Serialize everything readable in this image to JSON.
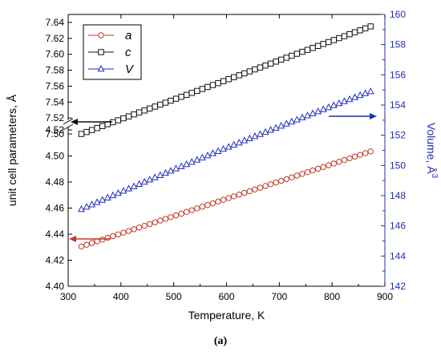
{
  "chart_data": {
    "type": "scatter",
    "caption": "(a)",
    "xlabel": "Temperature, K",
    "ylabel_left": "unit cell parameters, Å",
    "ylabel_right": "Volume, Å3",
    "xlim": [
      300,
      900
    ],
    "x_ticks": [
      "300",
      "400",
      "500",
      "600",
      "700",
      "800",
      "900"
    ],
    "left_axis_lower": {
      "range": [
        4.4,
        4.52
      ],
      "ticks": [
        "4.40",
        "4.42",
        "4.44",
        "4.46",
        "4.48",
        "4.50",
        "4.52"
      ]
    },
    "left_axis_upper": {
      "range": [
        7.49,
        7.65
      ],
      "ticks": [
        "7.50",
        "7.52",
        "7.54",
        "7.56",
        "7.58",
        "7.60",
        "7.62",
        "7.64"
      ]
    },
    "right_axis": {
      "range": [
        142,
        160
      ],
      "ticks": [
        "142",
        "144",
        "146",
        "148",
        "150",
        "152",
        "154",
        "156",
        "158",
        "160"
      ]
    },
    "legend": {
      "position": "top-left",
      "entries": [
        "a",
        "c",
        "V"
      ]
    },
    "series": [
      {
        "name": "a",
        "axis": "left-lower",
        "marker": "circle",
        "color": "#c0392b",
        "x_start": 325,
        "x_end": 873,
        "count": 56,
        "y_start": 4.4305,
        "y_end": 4.5035
      },
      {
        "name": "c",
        "axis": "left-upper",
        "marker": "square",
        "color": "#111111",
        "x_start": 325,
        "x_end": 873,
        "count": 56,
        "y_start": 7.5,
        "y_end": 7.635
      },
      {
        "name": "V",
        "axis": "right",
        "marker": "triangle",
        "color": "#1f2fb8",
        "x_start": 325,
        "x_end": 873,
        "count": 56,
        "y_start": 147.1,
        "y_end": 154.9
      }
    ],
    "arrows": [
      {
        "points_to": "left",
        "color": "#111111",
        "series": "c"
      },
      {
        "points_to": "right",
        "color": "#1f2fb8",
        "series": "V"
      },
      {
        "points_to": "left",
        "color": "#c0392b",
        "series": "a"
      }
    ],
    "colors": {
      "a": "#c0392b",
      "c": "#111111",
      "V": "#1f2fb8",
      "right_axis": "#1f2fb8"
    }
  }
}
